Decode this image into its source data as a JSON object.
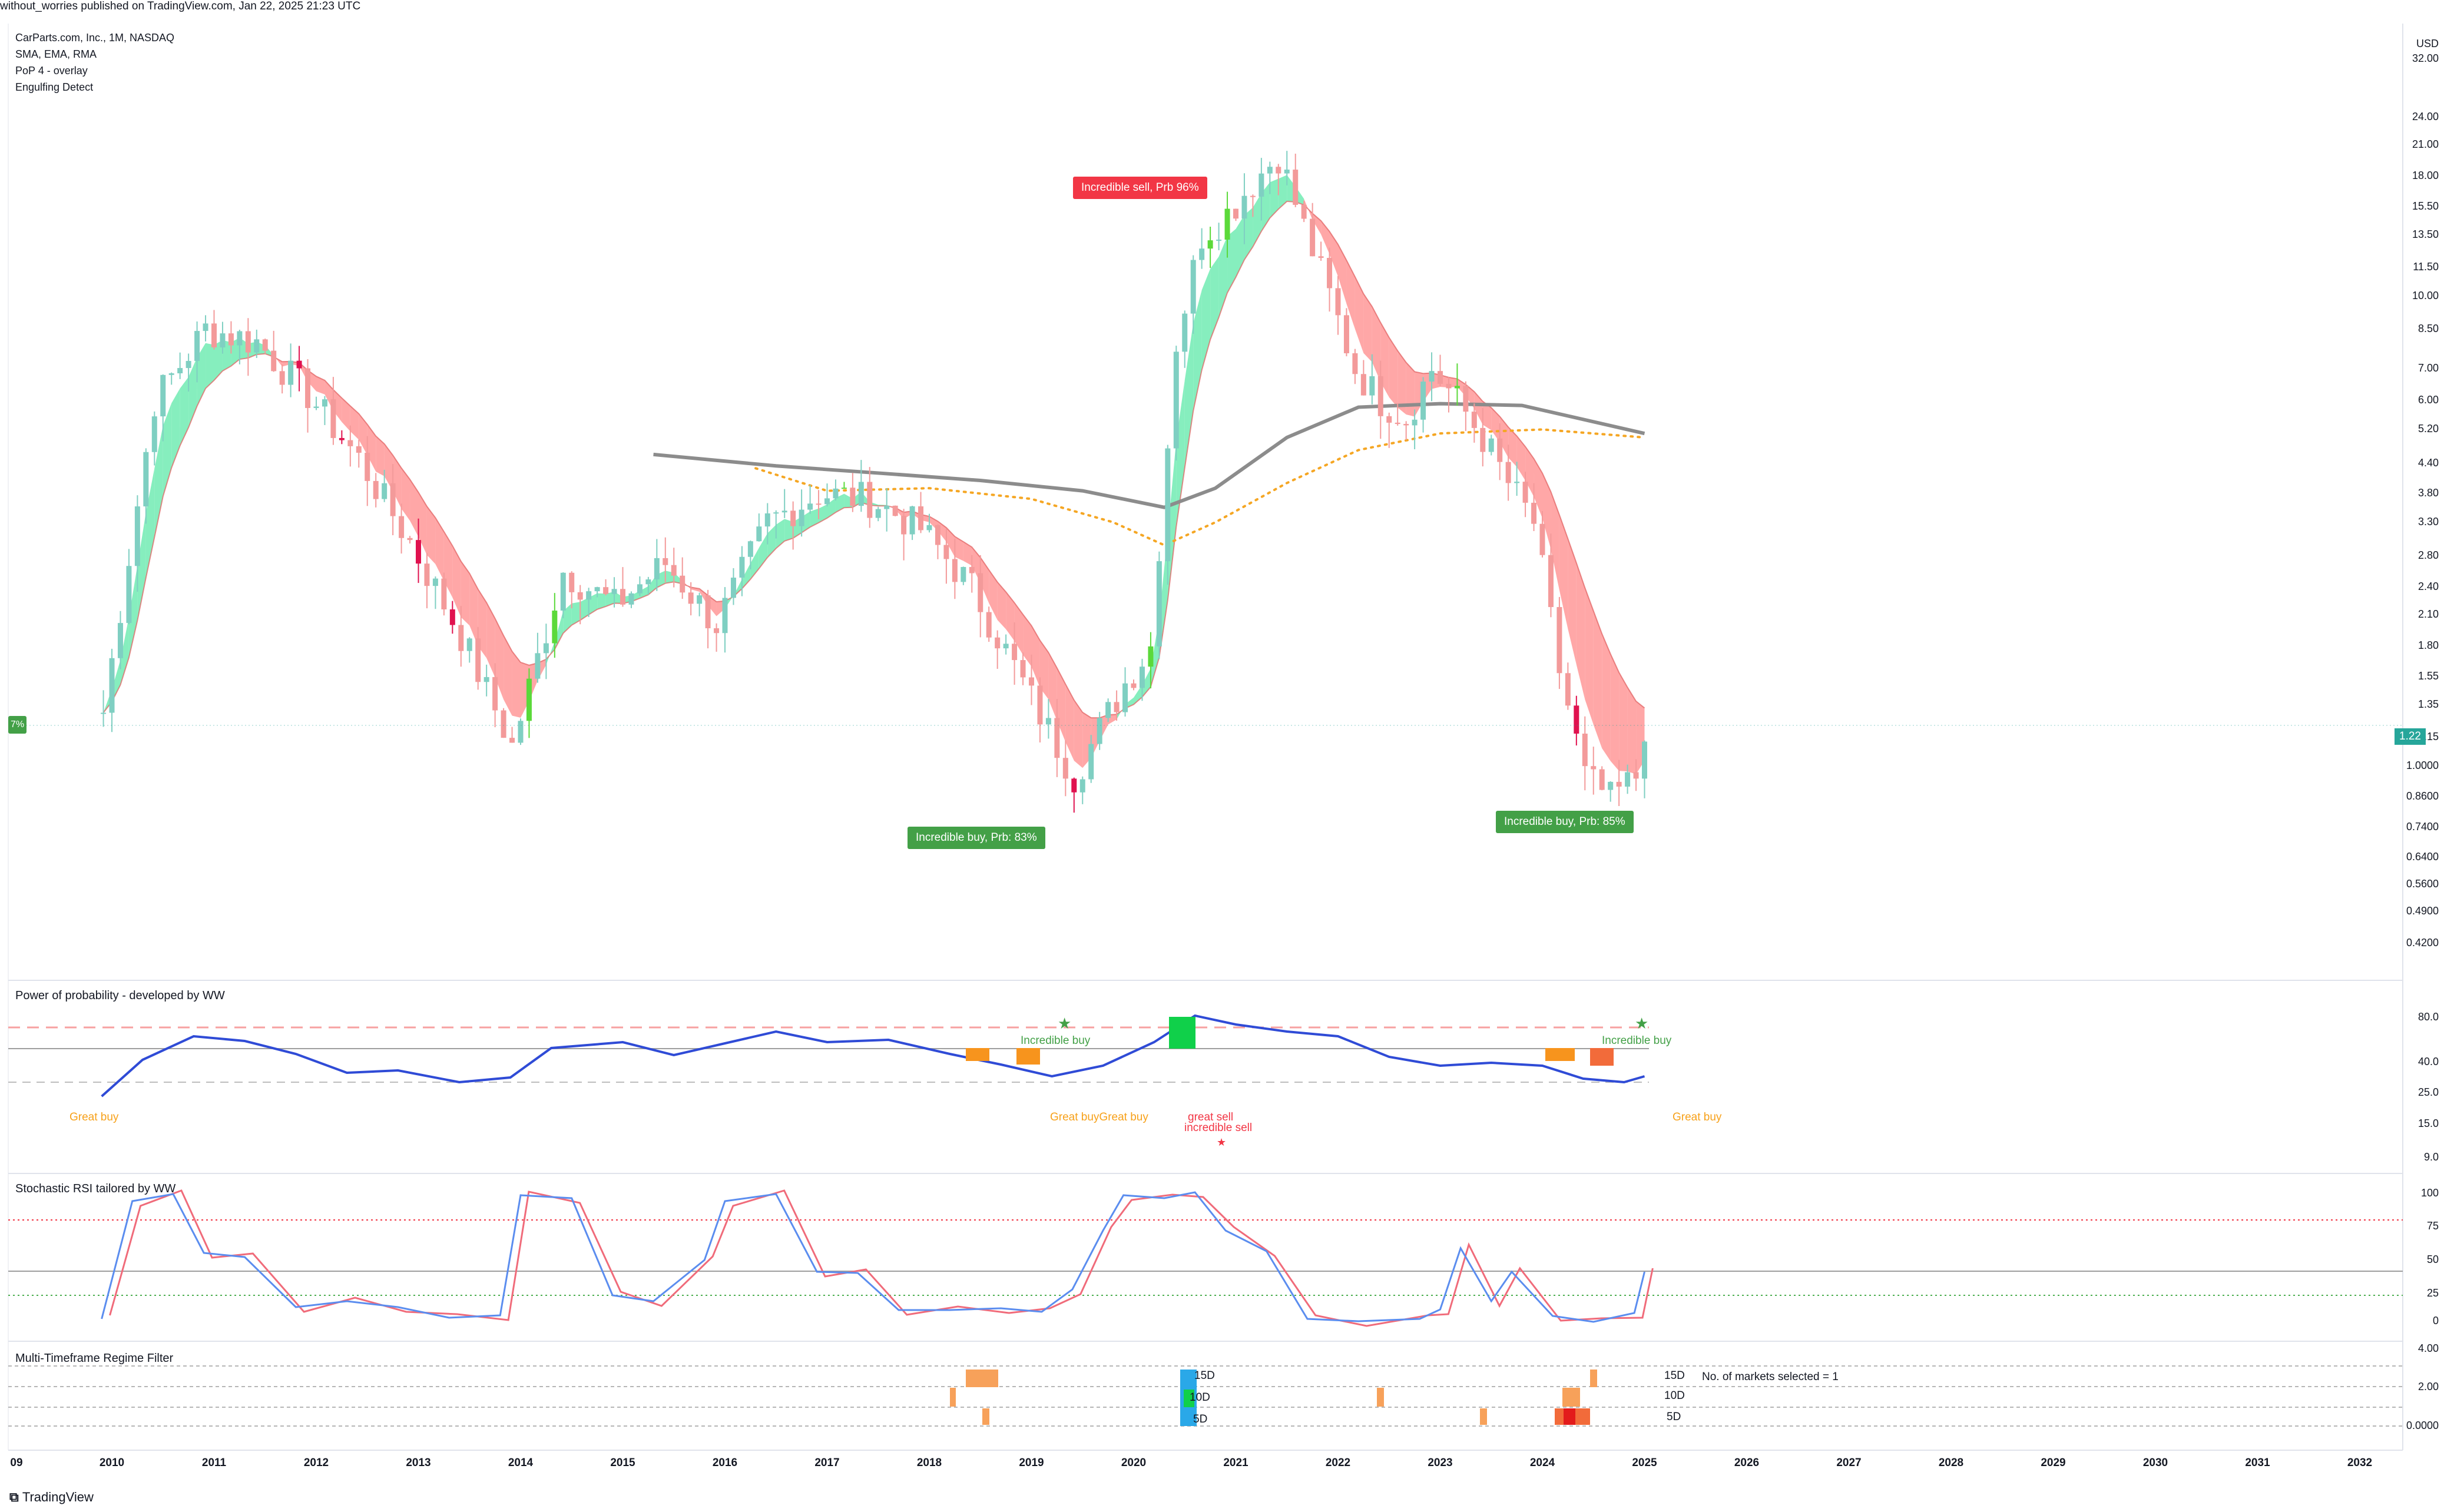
{
  "header": {
    "published": "without_worries published on TradingView.com, Jan 22, 2025 21:23 UTC"
  },
  "legend": {
    "symbol": "CarParts.com, Inc., 1M, NASDAQ",
    "ind1": "SMA, EMA, RMA",
    "ind2": "PoP 4 - overlay",
    "ind3": "Engulfing Detect"
  },
  "price_axis": {
    "currency": "USD",
    "labels": [
      "32.00",
      "24.00",
      "21.00",
      "18.00",
      "15.50",
      "13.50",
      "11.50",
      "10.00",
      "8.50",
      "7.00",
      "6.00",
      "5.20",
      "4.40",
      "3.80",
      "3.30",
      "2.80",
      "2.40",
      "2.10",
      "1.80",
      "1.55",
      "1.35",
      "1.15",
      "1.0000",
      "0.8600",
      "0.7400",
      "0.6400",
      "0.5600",
      "0.4900",
      "0.4200"
    ],
    "last_price": "1.22"
  },
  "annotations": {
    "sell_tag": "Incredible sell, Prb 96%",
    "buy_tag_1": "Incredible buy, Prb: 83%",
    "buy_tag_2": "Incredible buy, Prb: 85%",
    "left_tag": "7%"
  },
  "pop_pane": {
    "title": "Power of probability - developed by WW",
    "axis": [
      "80.0",
      "40.0",
      "25.0",
      "15.0",
      "9.0"
    ],
    "signals": {
      "great_buy_1": "Great buy",
      "great_buy_2": "Great buyGreat buy",
      "incredible_buy_1": "Incredible buy",
      "great_sell": "great sell",
      "incredible_sell": "incredible sell",
      "incredible_buy_2": "Incredible buy",
      "great_buy_3": "Great buy"
    }
  },
  "stoch_pane": {
    "title": "Stochastic RSI tailored by WW",
    "axis": [
      "100",
      "75",
      "50",
      "25",
      "0"
    ]
  },
  "regime_pane": {
    "title": "Multi-Timeframe Regime Filter",
    "axis": [
      "4.00",
      "2.00",
      "0.0000"
    ],
    "labels": [
      "15D",
      "10D",
      "5D"
    ],
    "markets_note": "No. of markets selected = 1"
  },
  "time_axis": [
    "2010",
    "2011",
    "2012",
    "2013",
    "2014",
    "2015",
    "2016",
    "2017",
    "2018",
    "2019",
    "2020",
    "2021",
    "2022",
    "2023",
    "2024",
    "2025",
    "2026",
    "2027",
    "2028",
    "2029",
    "2030",
    "2031",
    "2032"
  ],
  "time_axis_partial": "09",
  "footer": "TradingView",
  "colors": {
    "bull": "#26a69a",
    "bear": "#ef5350",
    "band_up": "#5ee8a8",
    "band_down": "#ff8a8a",
    "sma": "#8c8c8c",
    "ema_dots": "#f5a623",
    "pop_line": "#2f4bd6",
    "stoch_k": "#5b8def",
    "stoch_d": "#f06b7a"
  },
  "chart_data": {
    "type": "candlestick",
    "title": "CarParts.com, Inc., 1M, NASDAQ",
    "scale": "log",
    "ylim": [
      0.36,
      38
    ],
    "x": [
      "2009-12",
      "2010-06",
      "2010-12",
      "2011-06",
      "2011-12",
      "2012-06",
      "2012-12",
      "2013-06",
      "2013-12",
      "2014-06",
      "2014-12",
      "2015-06",
      "2015-12",
      "2016-06",
      "2016-12",
      "2017-06",
      "2017-12",
      "2018-06",
      "2018-12",
      "2019-06",
      "2019-12",
      "2020-03",
      "2020-06",
      "2020-09",
      "2020-12",
      "2021-03",
      "2021-06",
      "2021-09",
      "2021-12",
      "2022-03",
      "2022-06",
      "2022-09",
      "2022-12",
      "2023-03",
      "2023-06",
      "2023-09",
      "2023-12",
      "2024-03",
      "2024-06",
      "2024-09",
      "2024-12",
      "2025-01"
    ],
    "close": [
      1.3,
      6.0,
      8.5,
      8.0,
      6.2,
      4.5,
      3.0,
      1.9,
      1.1,
      2.6,
      2.2,
      2.7,
      2.0,
      3.3,
      3.8,
      3.7,
      3.2,
      2.4,
      1.5,
      0.95,
      1.5,
      1.8,
      8.0,
      13.5,
      15.0,
      17.5,
      20.0,
      14.0,
      10.0,
      7.0,
      6.0,
      5.5,
      7.0,
      6.0,
      5.0,
      4.0,
      3.3,
      1.6,
      0.95,
      0.85,
      0.95,
      1.22
    ]
  }
}
